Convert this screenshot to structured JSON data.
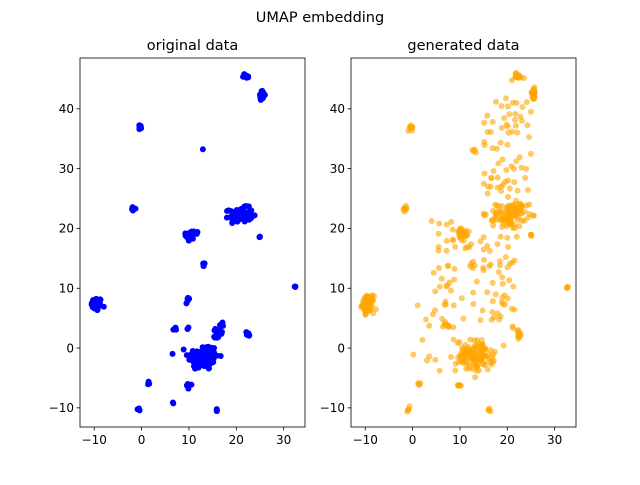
{
  "figure": {
    "suptitle": "UMAP embedding"
  },
  "chart_data": [
    {
      "type": "scatter",
      "title": "original data",
      "xlabel": "",
      "ylabel": "",
      "xlim": [
        -13,
        34.5
      ],
      "ylim": [
        -13.2,
        48.5
      ],
      "xticks": [
        -10,
        0,
        10,
        20,
        30
      ],
      "yticks": [
        -10,
        0,
        10,
        20,
        30,
        40
      ],
      "grid": false,
      "legend": false,
      "series": [
        {
          "color": "#0000ff",
          "alpha": 1.0,
          "clusters": [
            {
              "cx": -9.5,
              "cy": 7.3,
              "sx": 0.55,
              "sy": 0.55,
              "n": 70
            },
            {
              "cx": 13.0,
              "cy": -1.5,
              "sx": 1.6,
              "sy": 1.1,
              "n": 110
            },
            {
              "cx": 21.0,
              "cy": 22.3,
              "sx": 1.2,
              "sy": 0.6,
              "n": 80
            },
            {
              "cx": 10.3,
              "cy": 18.9,
              "sx": 0.5,
              "sy": 0.6,
              "n": 25
            },
            {
              "cx": 11.5,
              "cy": 19.3,
              "sx": 0.25,
              "sy": 0.2,
              "n": 6
            },
            {
              "cx": 25.4,
              "cy": 42.3,
              "sx": 0.3,
              "sy": 0.35,
              "n": 20
            },
            {
              "cx": 22.1,
              "cy": 45.5,
              "sx": 0.5,
              "sy": 0.2,
              "n": 12
            },
            {
              "cx": -0.3,
              "cy": 36.8,
              "sx": 0.2,
              "sy": 0.25,
              "n": 8
            },
            {
              "cx": -1.6,
              "cy": 23.3,
              "sx": 0.2,
              "sy": 0.15,
              "n": 6
            },
            {
              "cx": 15.8,
              "cy": 2.6,
              "sx": 0.25,
              "sy": 0.6,
              "n": 10
            },
            {
              "cx": 16.6,
              "cy": 3.3,
              "sx": 0.25,
              "sy": 0.5,
              "n": 6
            },
            {
              "cx": 22.4,
              "cy": 2.3,
              "sx": 0.2,
              "sy": 0.25,
              "n": 8
            },
            {
              "cx": 9.8,
              "cy": 8.0,
              "sx": 0.2,
              "sy": 0.3,
              "n": 6
            },
            {
              "cx": 13.1,
              "cy": 13.9,
              "sx": 0.15,
              "sy": 0.2,
              "n": 5
            },
            {
              "cx": 7.0,
              "cy": 3.2,
              "sx": 0.15,
              "sy": 0.15,
              "n": 4
            },
            {
              "cx": 9.8,
              "cy": 3.2,
              "sx": 0.15,
              "sy": 0.15,
              "n": 3
            },
            {
              "cx": 9.7,
              "cy": -6.2,
              "sx": 0.2,
              "sy": 0.2,
              "n": 5
            },
            {
              "cx": 1.5,
              "cy": -6.0,
              "sx": 0.15,
              "sy": 0.15,
              "n": 3
            },
            {
              "cx": -0.6,
              "cy": -10.2,
              "sx": 0.15,
              "sy": 0.15,
              "n": 3
            },
            {
              "cx": 15.8,
              "cy": -10.4,
              "sx": 0.15,
              "sy": 0.15,
              "n": 3
            },
            {
              "cx": 6.6,
              "cy": -9.2,
              "sx": 0.1,
              "sy": 0.1,
              "n": 2
            },
            {
              "cx": 24.9,
              "cy": 18.7,
              "sx": 0.15,
              "sy": 0.15,
              "n": 3
            },
            {
              "cx": 32.4,
              "cy": 10.1,
              "sx": 0.1,
              "sy": 0.15,
              "n": 3
            },
            {
              "cx": 13.0,
              "cy": 33.2,
              "sx": 0.05,
              "sy": 0.05,
              "n": 1
            }
          ]
        }
      ]
    },
    {
      "type": "scatter",
      "title": "generated data",
      "xlabel": "",
      "ylabel": "",
      "xlim": [
        -13,
        34.5
      ],
      "ylim": [
        -13.2,
        48.5
      ],
      "xticks": [
        -10,
        0,
        10,
        20,
        30
      ],
      "yticks": [
        -10,
        0,
        10,
        20,
        30,
        40
      ],
      "grid": false,
      "legend": false,
      "series": [
        {
          "color": "#ffa500",
          "alpha": 0.6,
          "clusters": [
            {
              "cx": -9.4,
              "cy": 7.3,
              "sx": 0.6,
              "sy": 0.7,
              "n": 70
            },
            {
              "cx": 13.2,
              "cy": -1.3,
              "sx": 2.0,
              "sy": 1.3,
              "n": 120
            },
            {
              "cx": 20.8,
              "cy": 22.3,
              "sx": 1.6,
              "sy": 1.0,
              "n": 90
            },
            {
              "cx": 10.4,
              "cy": 19.0,
              "sx": 0.8,
              "sy": 0.7,
              "n": 25
            },
            {
              "cx": 25.5,
              "cy": 42.5,
              "sx": 0.3,
              "sy": 0.5,
              "n": 25
            },
            {
              "cx": 22.2,
              "cy": 45.4,
              "sx": 0.7,
              "sy": 0.3,
              "n": 15
            },
            {
              "cx": -0.4,
              "cy": 36.9,
              "sx": 0.25,
              "sy": 0.3,
              "n": 10
            },
            {
              "cx": -1.5,
              "cy": 23.3,
              "sx": 0.2,
              "sy": 0.3,
              "n": 8
            },
            {
              "cx": 22.5,
              "cy": 2.3,
              "sx": 0.25,
              "sy": 0.3,
              "n": 10
            },
            {
              "cx": 9.8,
              "cy": -6.3,
              "sx": 0.25,
              "sy": 0.25,
              "n": 6
            },
            {
              "cx": -0.8,
              "cy": -10.2,
              "sx": 0.2,
              "sy": 0.2,
              "n": 5
            },
            {
              "cx": 16.0,
              "cy": -10.5,
              "sx": 0.2,
              "sy": 0.15,
              "n": 4
            },
            {
              "cx": 32.5,
              "cy": 10.1,
              "sx": 0.15,
              "sy": 0.15,
              "n": 4
            },
            {
              "cx": 25.0,
              "cy": 18.7,
              "sx": 0.2,
              "sy": 0.2,
              "n": 4
            },
            {
              "cx": 7.3,
              "cy": 3.5,
              "sx": 0.6,
              "sy": 0.6,
              "n": 8
            },
            {
              "cx": 13.0,
              "cy": 33.2,
              "sx": 0.3,
              "sy": 0.3,
              "n": 4
            },
            {
              "cx": 12.8,
              "cy": 13.8,
              "sx": 0.3,
              "sy": 0.3,
              "n": 4
            },
            {
              "cx": 1.3,
              "cy": -6.0,
              "sx": 0.2,
              "sy": 0.2,
              "n": 3
            }
          ],
          "scatter_regions": [
            {
              "xmin": 15,
              "xmax": 25,
              "ymin": 24,
              "ymax": 42,
              "n": 70
            },
            {
              "xmin": 14,
              "xmax": 22,
              "ymin": 3,
              "ymax": 24,
              "n": 60
            },
            {
              "xmin": 4,
              "xmax": 14,
              "ymin": 4,
              "ymax": 22,
              "n": 35
            },
            {
              "xmin": 0,
              "xmax": 9,
              "ymin": -7,
              "ymax": 12,
              "n": 18
            }
          ]
        }
      ]
    }
  ]
}
